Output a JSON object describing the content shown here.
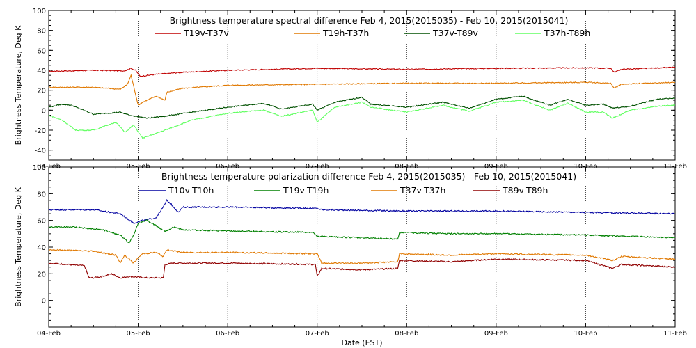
{
  "chart_data": [
    {
      "type": "line",
      "title": "Brightness temperature spectral difference    Feb  4, 2015(2015035) - Feb 10, 2015(2015041)",
      "ylabel": "Brightness Temperature, Deg K",
      "xlabel": "",
      "ylim": [
        -50,
        100
      ],
      "yticks": [
        -40,
        -20,
        0,
        20,
        40,
        60,
        80,
        100
      ],
      "xlim": [
        0,
        7
      ],
      "xticks": [
        "04-Feb",
        "05-Feb",
        "06-Feb",
        "07-Feb",
        "08-Feb",
        "09-Feb",
        "10-Feb",
        "11-Feb"
      ],
      "grid": true,
      "series": [
        {
          "name": "T19v-T37v",
          "color": "#c00000",
          "x": [
            0,
            0.5,
            0.85,
            0.92,
            0.97,
            1.02,
            1.2,
            1.5,
            2,
            3,
            4,
            5,
            6,
            6.28,
            6.32,
            6.4,
            7
          ],
          "y": [
            39,
            40,
            39.5,
            42,
            40,
            34,
            36,
            38,
            40,
            42,
            41,
            42,
            42.5,
            42,
            38,
            41,
            43
          ]
        },
        {
          "name": "T19h-T37h",
          "color": "#e07800",
          "x": [
            0,
            0.5,
            0.8,
            0.88,
            0.92,
            0.96,
            1.0,
            1.05,
            1.2,
            1.3,
            1.32,
            1.5,
            2,
            3,
            4,
            5,
            6,
            6.28,
            6.32,
            6.4,
            7
          ],
          "y": [
            23,
            23,
            21,
            26,
            35,
            20,
            5,
            8,
            14,
            10,
            18,
            22,
            25,
            26,
            27,
            27,
            28,
            27,
            22,
            26,
            28
          ]
        },
        {
          "name": "T37v-T89v",
          "color": "#005000",
          "x": [
            0,
            0.15,
            0.25,
            0.5,
            0.8,
            0.9,
            1.1,
            1.3,
            1.6,
            2,
            2.4,
            2.6,
            2.95,
            3,
            3.2,
            3.5,
            3.6,
            4,
            4.4,
            4.7,
            5,
            5.3,
            5.6,
            5.8,
            6,
            6.2,
            6.3,
            6.5,
            6.8,
            7
          ],
          "y": [
            3,
            6,
            5,
            -4,
            -2,
            -5,
            -8,
            -6,
            -2,
            3,
            7,
            1,
            6,
            0,
            8,
            13,
            6,
            3,
            8,
            2,
            11,
            14,
            5,
            11,
            5,
            6,
            2,
            4,
            11,
            12
          ]
        },
        {
          "name": "T37h-T89h",
          "color": "#60ff60",
          "x": [
            0,
            0.15,
            0.3,
            0.5,
            0.75,
            0.85,
            0.95,
            1.05,
            1.3,
            1.6,
            2,
            2.4,
            2.6,
            2.95,
            3,
            3.2,
            3.5,
            3.6,
            4,
            4.4,
            4.7,
            5,
            5.3,
            5.6,
            5.8,
            6,
            6.2,
            6.3,
            6.5,
            6.8,
            7
          ],
          "y": [
            -5,
            -10,
            -20,
            -20,
            -12,
            -22,
            -15,
            -28,
            -20,
            -10,
            -3,
            0,
            -6,
            0,
            -12,
            3,
            8,
            3,
            -2,
            5,
            -1,
            8,
            10,
            0,
            7,
            -2,
            -2,
            -8,
            0,
            4,
            5
          ]
        }
      ]
    },
    {
      "type": "line",
      "title": "Brightness temperature polarization difference    Feb  4, 2015(2015035) - Feb 10, 2015(2015041)",
      "ylabel": "Brightness Temperature, Deg K",
      "xlabel": "Date (EST)",
      "ylim": [
        -20,
        100
      ],
      "yticks": [
        0,
        20,
        40,
        60,
        80,
        100
      ],
      "xlim": [
        0,
        7
      ],
      "xticks": [
        "04-Feb",
        "05-Feb",
        "06-Feb",
        "07-Feb",
        "08-Feb",
        "09-Feb",
        "10-Feb",
        "11-Feb"
      ],
      "grid": true,
      "series": [
        {
          "name": "T10v-T10h",
          "color": "#0000a0",
          "x": [
            0,
            0.5,
            0.8,
            0.95,
            1.05,
            1.2,
            1.28,
            1.32,
            1.37,
            1.45,
            1.5,
            2,
            3,
            3.05,
            4,
            5,
            6,
            7
          ],
          "y": [
            68,
            68,
            65,
            58,
            60,
            62,
            70,
            75,
            72,
            66,
            70,
            70,
            69,
            68,
            67,
            67,
            66,
            65
          ]
        },
        {
          "name": "T19v-T19h",
          "color": "#008000",
          "x": [
            0,
            0.3,
            0.6,
            0.8,
            0.9,
            0.95,
            1.0,
            1.1,
            1.3,
            1.4,
            1.5,
            2,
            2.95,
            3.0,
            3.5,
            3.9,
            3.92,
            4.5,
            5,
            6,
            7
          ],
          "y": [
            55,
            55,
            53,
            49,
            43,
            49,
            58,
            60,
            52,
            55,
            53,
            52,
            51,
            48,
            47,
            46,
            51,
            50,
            50,
            49,
            47
          ]
        },
        {
          "name": "T37v-T37h",
          "color": "#e07800",
          "x": [
            0,
            0.5,
            0.75,
            0.8,
            0.85,
            0.95,
            1.0,
            1.05,
            1.2,
            1.28,
            1.32,
            1.5,
            2,
            3.0,
            3.05,
            3.5,
            3.9,
            3.92,
            4.5,
            5,
            6,
            6.3,
            6.4,
            7
          ],
          "y": [
            38,
            37,
            34,
            28,
            34,
            28,
            32,
            35,
            36,
            33,
            38,
            36,
            36,
            35,
            28,
            28,
            29,
            35,
            34,
            35,
            34,
            30,
            33,
            31
          ]
        },
        {
          "name": "T89v-T89h",
          "color": "#900000",
          "x": [
            0,
            0.4,
            0.45,
            0.5,
            0.6,
            0.7,
            0.8,
            0.9,
            1.1,
            1.28,
            1.3,
            1.4,
            2,
            2.98,
            3.0,
            3.05,
            3.5,
            3.9,
            3.92,
            4.5,
            5,
            6,
            6.3,
            6.4,
            7
          ],
          "y": [
            28,
            26,
            17,
            17,
            18,
            20,
            17,
            18,
            17,
            17,
            27,
            28,
            28,
            27,
            18,
            24,
            23,
            24,
            30,
            29,
            31,
            30,
            24,
            27,
            25
          ]
        }
      ]
    }
  ]
}
